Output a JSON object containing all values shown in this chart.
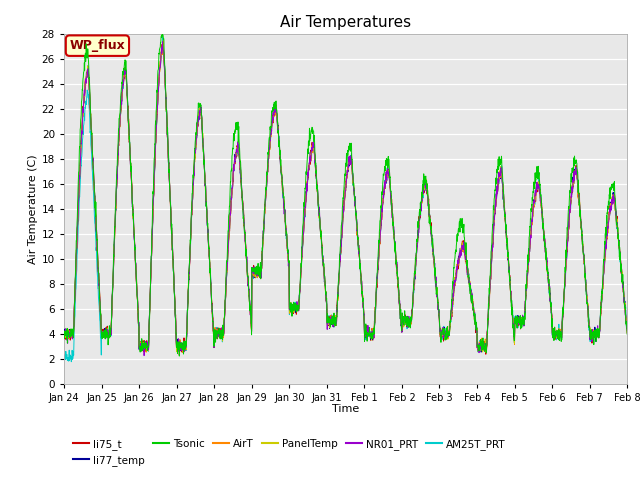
{
  "title": "Air Temperatures",
  "xlabel": "Time",
  "ylabel": "Air Temperature (C)",
  "ylim": [
    0,
    28
  ],
  "yticks": [
    0,
    2,
    4,
    6,
    8,
    10,
    12,
    14,
    16,
    18,
    20,
    22,
    24,
    26,
    28
  ],
  "date_labels": [
    "Jan 24",
    "Jan 25",
    "Jan 26",
    "Jan 27",
    "Jan 28",
    "Jan 29",
    "Jan 30",
    "Jan 31",
    "Feb 1",
    "Feb 2",
    "Feb 3",
    "Feb 4",
    "Feb 5",
    "Feb 6",
    "Feb 7",
    "Feb 8"
  ],
  "background_color": "#e8e8e8",
  "grid_color": "#ffffff",
  "fig_background": "#ffffff",
  "series_colors": {
    "li75_t": "#cc0000",
    "li77_temp": "#000099",
    "Tsonic": "#00cc00",
    "AirT": "#ff8800",
    "PanelTemp": "#cccc00",
    "NR01_PRT": "#9900cc",
    "AM25T_PRT": "#00cccc"
  },
  "legend_label": "WP_flux",
  "legend_box_facecolor": "#ffffcc",
  "legend_box_edgecolor": "#cc0000",
  "day_peaks": [
    25,
    25,
    27,
    22,
    19,
    22,
    19,
    18,
    17,
    16,
    11,
    17,
    16,
    17,
    15,
    14
  ],
  "day_mins": [
    4,
    4,
    3,
    3,
    4,
    9,
    6,
    5,
    4,
    5,
    4,
    3,
    5,
    4,
    4,
    6
  ],
  "n_days": 15,
  "pts_per_day": 144
}
